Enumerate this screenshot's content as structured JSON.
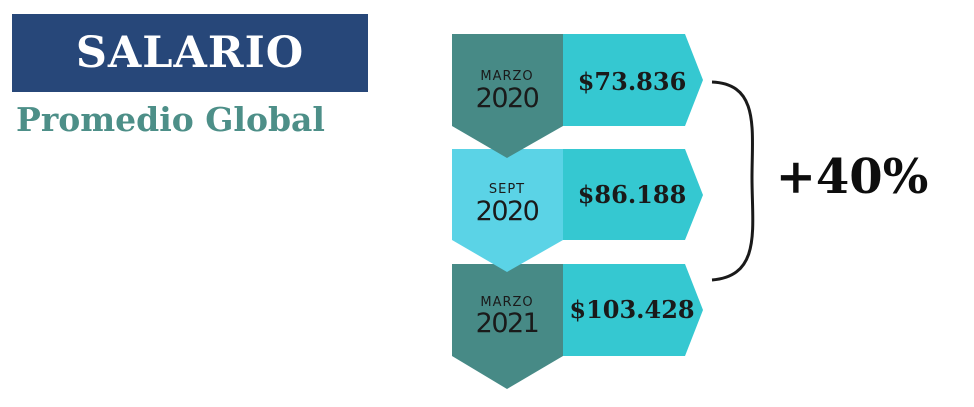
{
  "header": {
    "title": "SALARIO",
    "subtitle": "Promedio Global"
  },
  "colors": {
    "banner": "#274779",
    "subtitle": "#4d8f88",
    "dark_teal": "#478a86",
    "light_cyan": "#5bd3e6",
    "cyan": "#35c8d1",
    "text_dark": "#1a1a1a"
  },
  "periods": [
    {
      "month": "MARZO",
      "year": "2020",
      "amount": "$73.836",
      "value": 73836,
      "style": "dark"
    },
    {
      "month": "SEPT",
      "year": "2020",
      "amount": "$86.188",
      "value": 86188,
      "style": "light"
    },
    {
      "month": "MARZO",
      "year": "2021",
      "amount": "$103.428",
      "value": 103428,
      "style": "dark"
    }
  ],
  "growth": "+40%"
}
